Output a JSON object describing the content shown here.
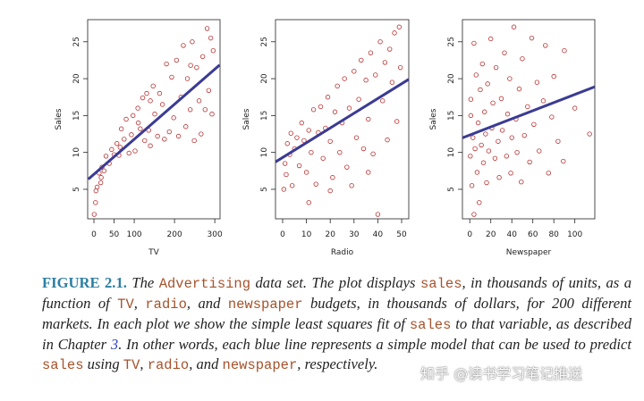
{
  "chart_data": [
    {
      "type": "scatter",
      "x_label": "TV",
      "y_label": "Sales",
      "xlim": [
        -15.6,
        313
      ],
      "ylim": [
        1,
        28
      ],
      "xticks": [
        0,
        50,
        100,
        200,
        300
      ],
      "yticks": [
        5,
        10,
        15,
        20,
        25
      ],
      "color": "#b83232",
      "points": {
        "x": [
          5,
          8,
          13,
          17,
          20,
          25,
          30,
          38,
          44,
          50,
          57,
          62,
          68,
          75,
          80,
          87,
          93,
          97,
          102,
          109,
          115,
          121,
          126,
          131,
          136,
          140,
          147,
          151,
          158,
          163,
          170,
          175,
          180,
          187,
          193,
          198,
          205,
          210,
          216,
          222,
          228,
          232,
          239,
          244,
          249,
          255,
          261,
          266,
          270,
          276,
          281,
          285,
          290,
          293,
          296,
          0.7,
          4,
          18,
          240,
          140,
          110,
          65
        ],
        "y": [
          4.8,
          5.3,
          7.2,
          5.9,
          8.0,
          7.5,
          9.5,
          8.5,
          10.4,
          9.7,
          11.2,
          9.6,
          13.2,
          11.8,
          14.5,
          9.9,
          12.4,
          15.0,
          10.2,
          16.0,
          13.2,
          17.4,
          11.6,
          18.0,
          13.0,
          10.9,
          19.0,
          15.2,
          12.2,
          18.0,
          16.5,
          11.8,
          22.0,
          12.8,
          20.2,
          14.7,
          22.5,
          12.2,
          17.5,
          24.5,
          13.5,
          20.0,
          15.8,
          25.0,
          11.6,
          21.5,
          17.0,
          12.5,
          23.0,
          15.8,
          26.8,
          18.4,
          25.5,
          15.2,
          23.8,
          1.6,
          3.2,
          6.6,
          21.8,
          17,
          14,
          10.7
        ]
      },
      "fit": {
        "color": "#3b3b94",
        "x": [
          -14,
          312
        ],
        "y": [
          6.37,
          21.85
        ]
      }
    },
    {
      "type": "scatter",
      "x_label": "Radio",
      "y_label": "Sales",
      "xlim": [
        -3,
        53
      ],
      "ylim": [
        1,
        28
      ],
      "xticks": [
        0,
        10,
        20,
        30,
        40,
        50
      ],
      "yticks": [
        5,
        10,
        15,
        20,
        25
      ],
      "color": "#b83232",
      "points": {
        "x": [
          0.5,
          1,
          1.5,
          2,
          3,
          3.5,
          4,
          5,
          6,
          7,
          8,
          9,
          10,
          11,
          12,
          13,
          14,
          15,
          16,
          17,
          18,
          19,
          20,
          21,
          22,
          23,
          24,
          25,
          26,
          27,
          28,
          29,
          30,
          31,
          32,
          33,
          34,
          35,
          36,
          37,
          38,
          39,
          40,
          41,
          42,
          43,
          44,
          45,
          46,
          47,
          48,
          49,
          49.5,
          20,
          11,
          36
        ],
        "y": [
          5.0,
          8.5,
          7,
          11.2,
          9.7,
          12.6,
          5.5,
          10.5,
          12,
          8.2,
          14,
          11.6,
          7.3,
          13.0,
          10.0,
          15.8,
          5.7,
          12.7,
          16.2,
          9.2,
          13.3,
          17.5,
          11.5,
          6.6,
          15.5,
          19.0,
          10.0,
          14.0,
          20.0,
          8.0,
          16.0,
          5.5,
          21.0,
          12.0,
          17.2,
          22.5,
          10.5,
          19.8,
          14.5,
          23.5,
          9.8,
          20.5,
          1.6,
          25.0,
          17.0,
          22.2,
          11.7,
          24.0,
          19.5,
          26.2,
          14.2,
          27.0,
          21.5,
          4.8,
          3.2,
          7.3
        ]
      },
      "fit": {
        "color": "#3b3b94",
        "x": [
          -3,
          53
        ],
        "y": [
          8.71,
          19.91
        ]
      }
    },
    {
      "type": "scatter",
      "x_label": "Newspaper",
      "y_label": "Sales",
      "xlim": [
        -7,
        119
      ],
      "ylim": [
        1,
        28
      ],
      "xticks": [
        0,
        20,
        40,
        60,
        80,
        100
      ],
      "yticks": [
        5,
        10,
        15,
        20,
        25
      ],
      "color": "#b83232",
      "points": {
        "x": [
          0.5,
          1,
          2,
          3,
          4,
          5,
          6,
          7,
          8,
          9,
          10,
          11,
          12,
          13,
          14,
          15,
          16,
          17,
          18,
          20,
          21,
          22,
          24,
          25,
          27,
          28,
          30,
          31,
          33,
          35,
          36,
          38,
          39,
          40,
          42,
          44,
          45,
          47,
          49,
          50,
          52,
          55,
          57,
          59,
          61,
          64,
          66,
          70,
          72,
          75,
          78,
          80,
          84,
          89,
          90,
          100,
          114,
          4,
          1
        ],
        "y": [
          9.5,
          17.2,
          5.5,
          12.0,
          24.8,
          10.5,
          20.5,
          7.3,
          14.0,
          3.2,
          18.5,
          11.0,
          22.0,
          8.6,
          15.5,
          12.5,
          5.9,
          19.3,
          10.2,
          25.4,
          13.3,
          16.7,
          9.2,
          21.5,
          11.5,
          6.6,
          17.3,
          13.0,
          23.5,
          9.5,
          15.2,
          20.0,
          7.2,
          12.0,
          27.0,
          14.5,
          10.0,
          18.6,
          6.0,
          22.7,
          12.3,
          16.2,
          8.7,
          25.5,
          13.8,
          19.5,
          10.2,
          17.0,
          24.5,
          7.2,
          14.8,
          20.3,
          11.5,
          8.8,
          23.8,
          16.0,
          12.5,
          1.6,
          15
        ]
      },
      "fit": {
        "color": "#3b3b94",
        "x": [
          -7,
          119
        ],
        "y": [
          11.97,
          18.9
        ]
      }
    }
  ],
  "caption": [
    {
      "text": "FIGURE 2.1.",
      "kind": "figure"
    },
    {
      "text": " The ",
      "kind": "text"
    },
    {
      "text": "Advertising",
      "kind": "code"
    },
    {
      "text": " data set. The plot displays ",
      "kind": "text"
    },
    {
      "text": "sales",
      "kind": "code"
    },
    {
      "text": ", in thousands of units, as a function of ",
      "kind": "text"
    },
    {
      "text": "TV",
      "kind": "code"
    },
    {
      "text": ", ",
      "kind": "text"
    },
    {
      "text": "radio",
      "kind": "code"
    },
    {
      "text": ", and ",
      "kind": "text"
    },
    {
      "text": "newspaper",
      "kind": "code"
    },
    {
      "text": " budgets, in thousands of dollars, for 200 different markets. In each plot we show the simple least squares fit of ",
      "kind": "text"
    },
    {
      "text": "sales",
      "kind": "code"
    },
    {
      "text": " to that variable, as described in Chapter ",
      "kind": "text"
    },
    {
      "text": "3",
      "kind": "link"
    },
    {
      "text": ". In other words, each blue line represents a simple model that can be used to predict ",
      "kind": "text"
    },
    {
      "text": "sales",
      "kind": "code"
    },
    {
      "text": " using ",
      "kind": "text"
    },
    {
      "text": "TV",
      "kind": "code"
    },
    {
      "text": ", ",
      "kind": "text"
    },
    {
      "text": "radio",
      "kind": "code"
    },
    {
      "text": ", and ",
      "kind": "text"
    },
    {
      "text": "newspaper",
      "kind": "code"
    },
    {
      "text": ", respectively.",
      "kind": "text"
    }
  ],
  "watermark": "知乎 @读书学习笔记推送"
}
